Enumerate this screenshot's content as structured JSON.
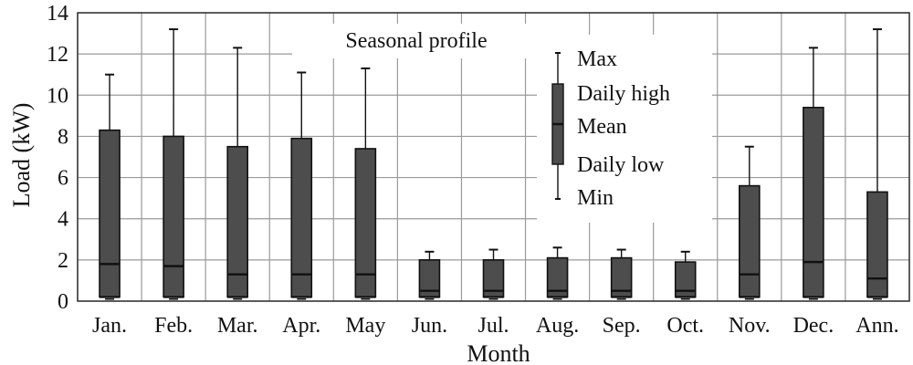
{
  "chart_data": {
    "type": "box",
    "title": "Seasonal profile",
    "xlabel": "Month",
    "ylabel": "Load (kW)",
    "ylim": [
      0,
      14
    ],
    "yticks": [
      0,
      2,
      4,
      6,
      8,
      10,
      12,
      14
    ],
    "grid": true,
    "legend_position": "top-right",
    "colors": {
      "box": "#4d4d4d",
      "grid": "#9a9a9a",
      "whisker": "#111111"
    },
    "legend": [
      "Max",
      "Daily high",
      "Mean",
      "Daily low",
      "Min"
    ],
    "categories": [
      "Jan.",
      "Feb.",
      "Mar.",
      "Apr.",
      "May",
      "Jun.",
      "Jul.",
      "Aug.",
      "Sep.",
      "Oct.",
      "Nov.",
      "Dec.",
      "Ann."
    ],
    "series": [
      {
        "category": "Jan.",
        "max": 11.0,
        "daily_high": 8.3,
        "mean": 1.8,
        "daily_low": 0.2,
        "min": 0.1
      },
      {
        "category": "Feb.",
        "max": 13.2,
        "daily_high": 8.0,
        "mean": 1.7,
        "daily_low": 0.2,
        "min": 0.1
      },
      {
        "category": "Mar.",
        "max": 12.3,
        "daily_high": 7.5,
        "mean": 1.3,
        "daily_low": 0.2,
        "min": 0.1
      },
      {
        "category": "Apr.",
        "max": 11.1,
        "daily_high": 7.9,
        "mean": 1.3,
        "daily_low": 0.2,
        "min": 0.1
      },
      {
        "category": "May",
        "max": 11.3,
        "daily_high": 7.4,
        "mean": 1.3,
        "daily_low": 0.2,
        "min": 0.1
      },
      {
        "category": "Jun.",
        "max": 2.4,
        "daily_high": 2.0,
        "mean": 0.5,
        "daily_low": 0.2,
        "min": 0.1
      },
      {
        "category": "Jul.",
        "max": 2.5,
        "daily_high": 2.0,
        "mean": 0.5,
        "daily_low": 0.2,
        "min": 0.1
      },
      {
        "category": "Aug.",
        "max": 2.6,
        "daily_high": 2.1,
        "mean": 0.5,
        "daily_low": 0.2,
        "min": 0.1
      },
      {
        "category": "Sep.",
        "max": 2.5,
        "daily_high": 2.1,
        "mean": 0.5,
        "daily_low": 0.2,
        "min": 0.1
      },
      {
        "category": "Oct.",
        "max": 2.4,
        "daily_high": 1.9,
        "mean": 0.5,
        "daily_low": 0.2,
        "min": 0.1
      },
      {
        "category": "Nov.",
        "max": 7.5,
        "daily_high": 5.6,
        "mean": 1.3,
        "daily_low": 0.2,
        "min": 0.1
      },
      {
        "category": "Dec.",
        "max": 12.3,
        "daily_high": 9.4,
        "mean": 1.9,
        "daily_low": 0.2,
        "min": 0.1
      },
      {
        "category": "Ann.",
        "max": 13.2,
        "daily_high": 5.3,
        "mean": 1.1,
        "daily_low": 0.2,
        "min": 0.1
      }
    ]
  }
}
